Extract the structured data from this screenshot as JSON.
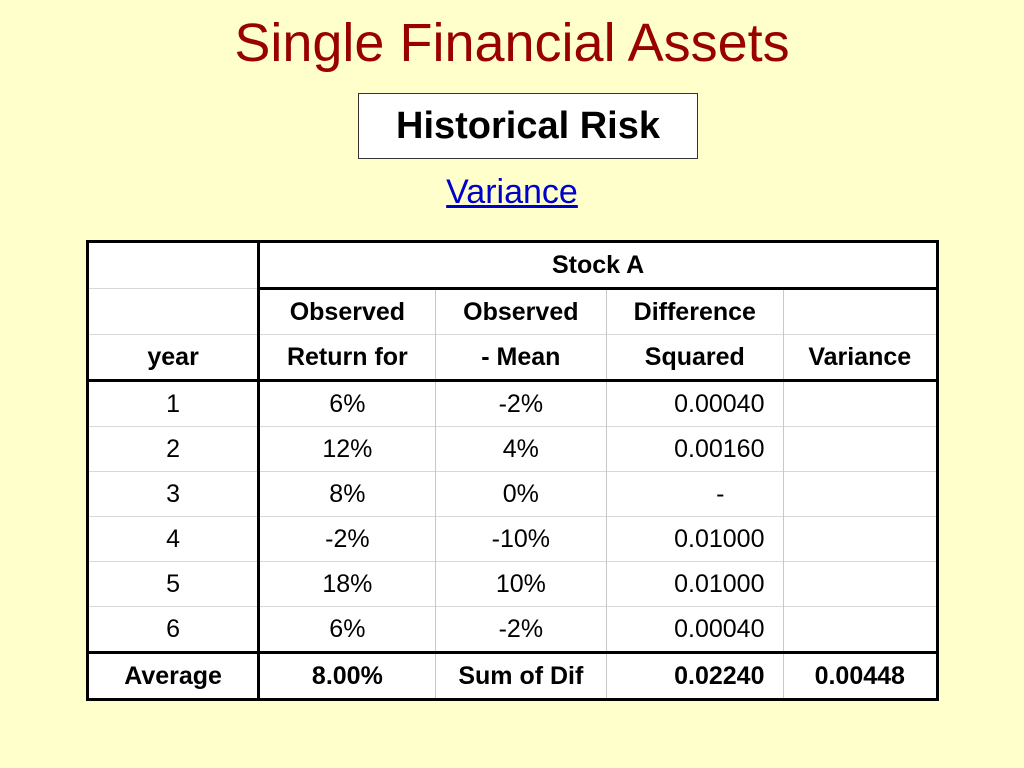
{
  "title": "Single Financial Assets",
  "subtitle": "Historical Risk",
  "link": "Variance",
  "table": {
    "group_header": "Stock A",
    "header_row_1": [
      "",
      "Observed",
      "Observed",
      "Difference",
      ""
    ],
    "header_row_2": [
      "year",
      "Return for",
      "- Mean",
      "Squared",
      "Variance"
    ],
    "rows": [
      [
        "1",
        "6%",
        "-2%",
        "0.00040",
        ""
      ],
      [
        "2",
        "12%",
        "4%",
        "0.00160",
        ""
      ],
      [
        "3",
        "8%",
        "0%",
        "-",
        ""
      ],
      [
        "4",
        "-2%",
        "-10%",
        "0.01000",
        ""
      ],
      [
        "5",
        "18%",
        "10%",
        "0.01000",
        ""
      ],
      [
        "6",
        "6%",
        "-2%",
        "0.00040",
        ""
      ]
    ],
    "footer": [
      "Average",
      "8.00%",
      "Sum of Dif",
      "0.02240",
      "0.00448"
    ]
  }
}
